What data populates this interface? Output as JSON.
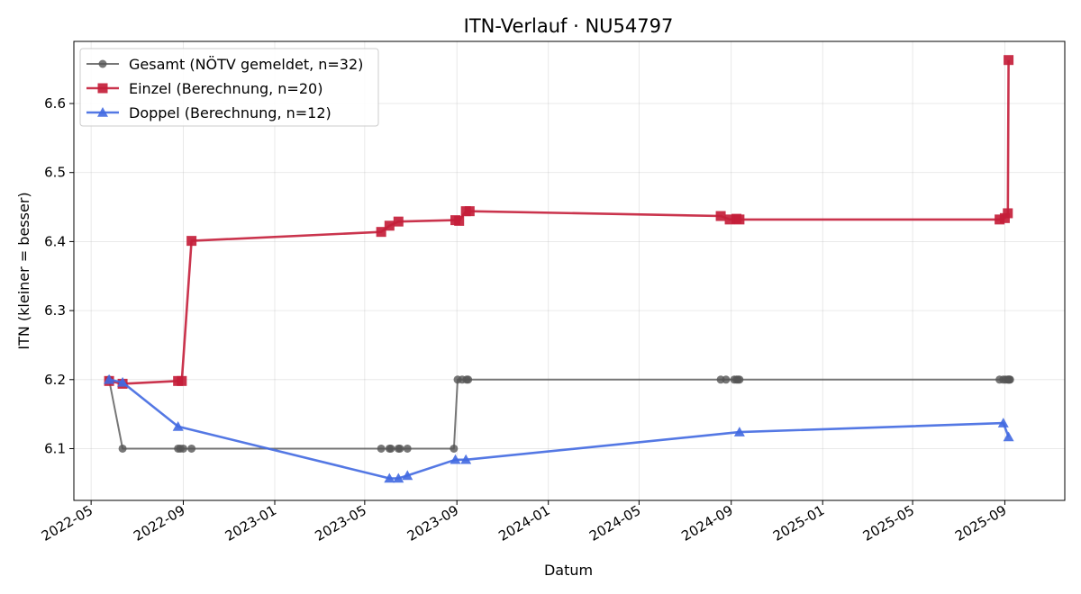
{
  "chart_data": {
    "type": "line",
    "title": "ITN-Verlauf · NU54797",
    "xlabel": "Datum",
    "ylabel": "ITN  (kleiner = besser)",
    "x_axis_type": "date",
    "xlim": [
      "2022-04-08",
      "2025-11-20"
    ],
    "ylim": [
      6.025,
      6.69
    ],
    "x_ticks": [
      "2022-05",
      "2022-09",
      "2023-01",
      "2023-05",
      "2023-09",
      "2024-01",
      "2024-05",
      "2024-09",
      "2025-01",
      "2025-05",
      "2025-09"
    ],
    "y_ticks": [
      6.1,
      6.2,
      6.3,
      6.4,
      6.5,
      6.6
    ],
    "grid": true,
    "legend_position": "top-left",
    "series": [
      {
        "name": "Gesamt (NÖTV gemeldet, n=32)",
        "color": "#555555",
        "marker": "circle",
        "points": [
          {
            "x": "2022-05-25",
            "y": 6.2
          },
          {
            "x": "2022-06-12",
            "y": 6.1
          },
          {
            "x": "2022-08-25",
            "y": 6.1
          },
          {
            "x": "2022-08-28",
            "y": 6.1
          },
          {
            "x": "2022-09-01",
            "y": 6.1
          },
          {
            "x": "2022-09-12",
            "y": 6.1
          },
          {
            "x": "2023-05-23",
            "y": 6.1
          },
          {
            "x": "2023-06-03",
            "y": 6.1
          },
          {
            "x": "2023-06-05",
            "y": 6.1
          },
          {
            "x": "2023-06-15",
            "y": 6.1
          },
          {
            "x": "2023-06-17",
            "y": 6.1
          },
          {
            "x": "2023-06-27",
            "y": 6.1
          },
          {
            "x": "2023-08-28",
            "y": 6.1
          },
          {
            "x": "2023-09-02",
            "y": 6.2
          },
          {
            "x": "2023-09-08",
            "y": 6.2
          },
          {
            "x": "2023-09-14",
            "y": 6.2
          },
          {
            "x": "2023-09-16",
            "y": 6.2
          },
          {
            "x": "2024-08-18",
            "y": 6.2
          },
          {
            "x": "2024-08-25",
            "y": 6.2
          },
          {
            "x": "2024-09-05",
            "y": 6.2
          },
          {
            "x": "2024-09-08",
            "y": 6.2
          },
          {
            "x": "2024-09-10",
            "y": 6.2
          },
          {
            "x": "2024-09-12",
            "y": 6.2
          },
          {
            "x": "2025-08-25",
            "y": 6.2
          },
          {
            "x": "2025-08-30",
            "y": 6.2
          },
          {
            "x": "2025-09-02",
            "y": 6.2
          },
          {
            "x": "2025-09-05",
            "y": 6.2
          },
          {
            "x": "2025-09-06",
            "y": 6.2
          },
          {
            "x": "2025-09-07",
            "y": 6.2
          },
          {
            "x": "2025-09-08",
            "y": 6.2
          }
        ]
      },
      {
        "name": "Einzel (Berechnung, n=20)",
        "color": "#c41e3a",
        "marker": "square",
        "points": [
          {
            "x": "2022-05-25",
            "y": 6.198
          },
          {
            "x": "2022-06-12",
            "y": 6.194
          },
          {
            "x": "2022-08-25",
            "y": 6.198
          },
          {
            "x": "2022-08-30",
            "y": 6.198
          },
          {
            "x": "2022-09-12",
            "y": 6.401
          },
          {
            "x": "2023-05-23",
            "y": 6.414
          },
          {
            "x": "2023-06-03",
            "y": 6.423
          },
          {
            "x": "2023-06-15",
            "y": 6.429
          },
          {
            "x": "2023-08-30",
            "y": 6.431
          },
          {
            "x": "2023-09-04",
            "y": 6.43
          },
          {
            "x": "2023-09-13",
            "y": 6.444
          },
          {
            "x": "2023-09-18",
            "y": 6.444
          },
          {
            "x": "2024-08-18",
            "y": 6.437
          },
          {
            "x": "2024-08-30",
            "y": 6.432
          },
          {
            "x": "2024-09-08",
            "y": 6.433
          },
          {
            "x": "2024-09-12",
            "y": 6.432
          },
          {
            "x": "2025-08-25",
            "y": 6.432
          },
          {
            "x": "2025-09-01",
            "y": 6.434
          },
          {
            "x": "2025-09-05",
            "y": 6.441
          },
          {
            "x": "2025-09-06",
            "y": 6.663
          }
        ]
      },
      {
        "name": "Doppel (Berechnung, n=12)",
        "color": "#4169e1",
        "marker": "triangle",
        "points": [
          {
            "x": "2022-05-25",
            "y": 6.2
          },
          {
            "x": "2022-06-12",
            "y": 6.196
          },
          {
            "x": "2022-08-25",
            "y": 6.132
          },
          {
            "x": "2023-06-03",
            "y": 6.057
          },
          {
            "x": "2023-06-15",
            "y": 6.057
          },
          {
            "x": "2023-06-27",
            "y": 6.061
          },
          {
            "x": "2023-08-30",
            "y": 6.084
          },
          {
            "x": "2023-09-13",
            "y": 6.084
          },
          {
            "x": "2024-09-12",
            "y": 6.124
          },
          {
            "x": "2025-08-30",
            "y": 6.137
          },
          {
            "x": "2025-09-06",
            "y": 6.117
          }
        ]
      }
    ]
  }
}
